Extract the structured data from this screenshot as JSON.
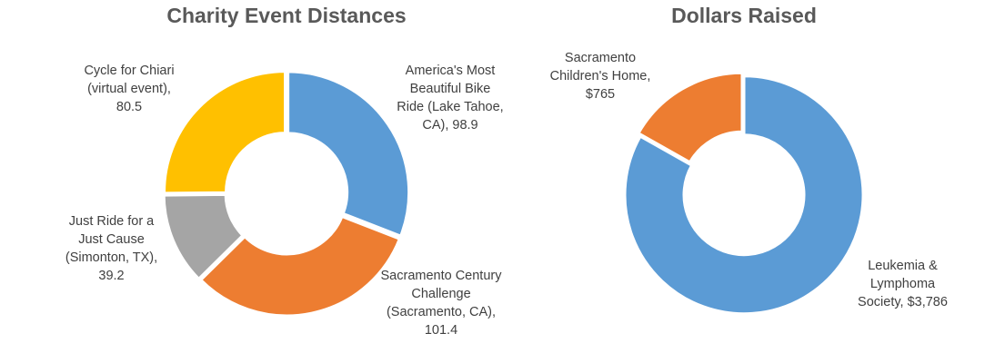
{
  "chart_data": [
    {
      "type": "pie",
      "title": "Charity Event Distances",
      "donut": true,
      "categories": [
        "America's Most Beautiful Bike Ride (Lake Tahoe, CA)",
        "Sacramento Century Challenge (Sacramento, CA)",
        "Just Ride for a Just Cause (Simonton, TX)",
        "Cycle for Chiari (virtual event)"
      ],
      "values": [
        98.9,
        101.4,
        39.2,
        80.5
      ],
      "colors": [
        "#5B9BD5",
        "#ED7D31",
        "#A5A5A5",
        "#FFC000"
      ],
      "data_labels": [
        "America's Most\nBeautiful Bike\nRide (Lake Tahoe,\nCA),  98.9",
        "Sacramento Century\nChallenge\n(Sacramento, CA),\n101.4",
        "Just Ride for a\nJust Cause\n(Simonton, TX),\n39.2",
        "Cycle for Chiari\n(virtual event),\n80.5"
      ]
    },
    {
      "type": "pie",
      "title": "Dollars Raised",
      "donut": true,
      "categories": [
        "Leukemia & Lymphoma Society",
        "Sacramento Children's Home"
      ],
      "values": [
        3786,
        765
      ],
      "colors": [
        "#5B9BD5",
        "#ED7D31"
      ],
      "data_labels": [
        "Leukemia &\nLymphoma\nSociety, $3,786",
        "Sacramento\nChildren's Home,\n$765"
      ]
    }
  ]
}
